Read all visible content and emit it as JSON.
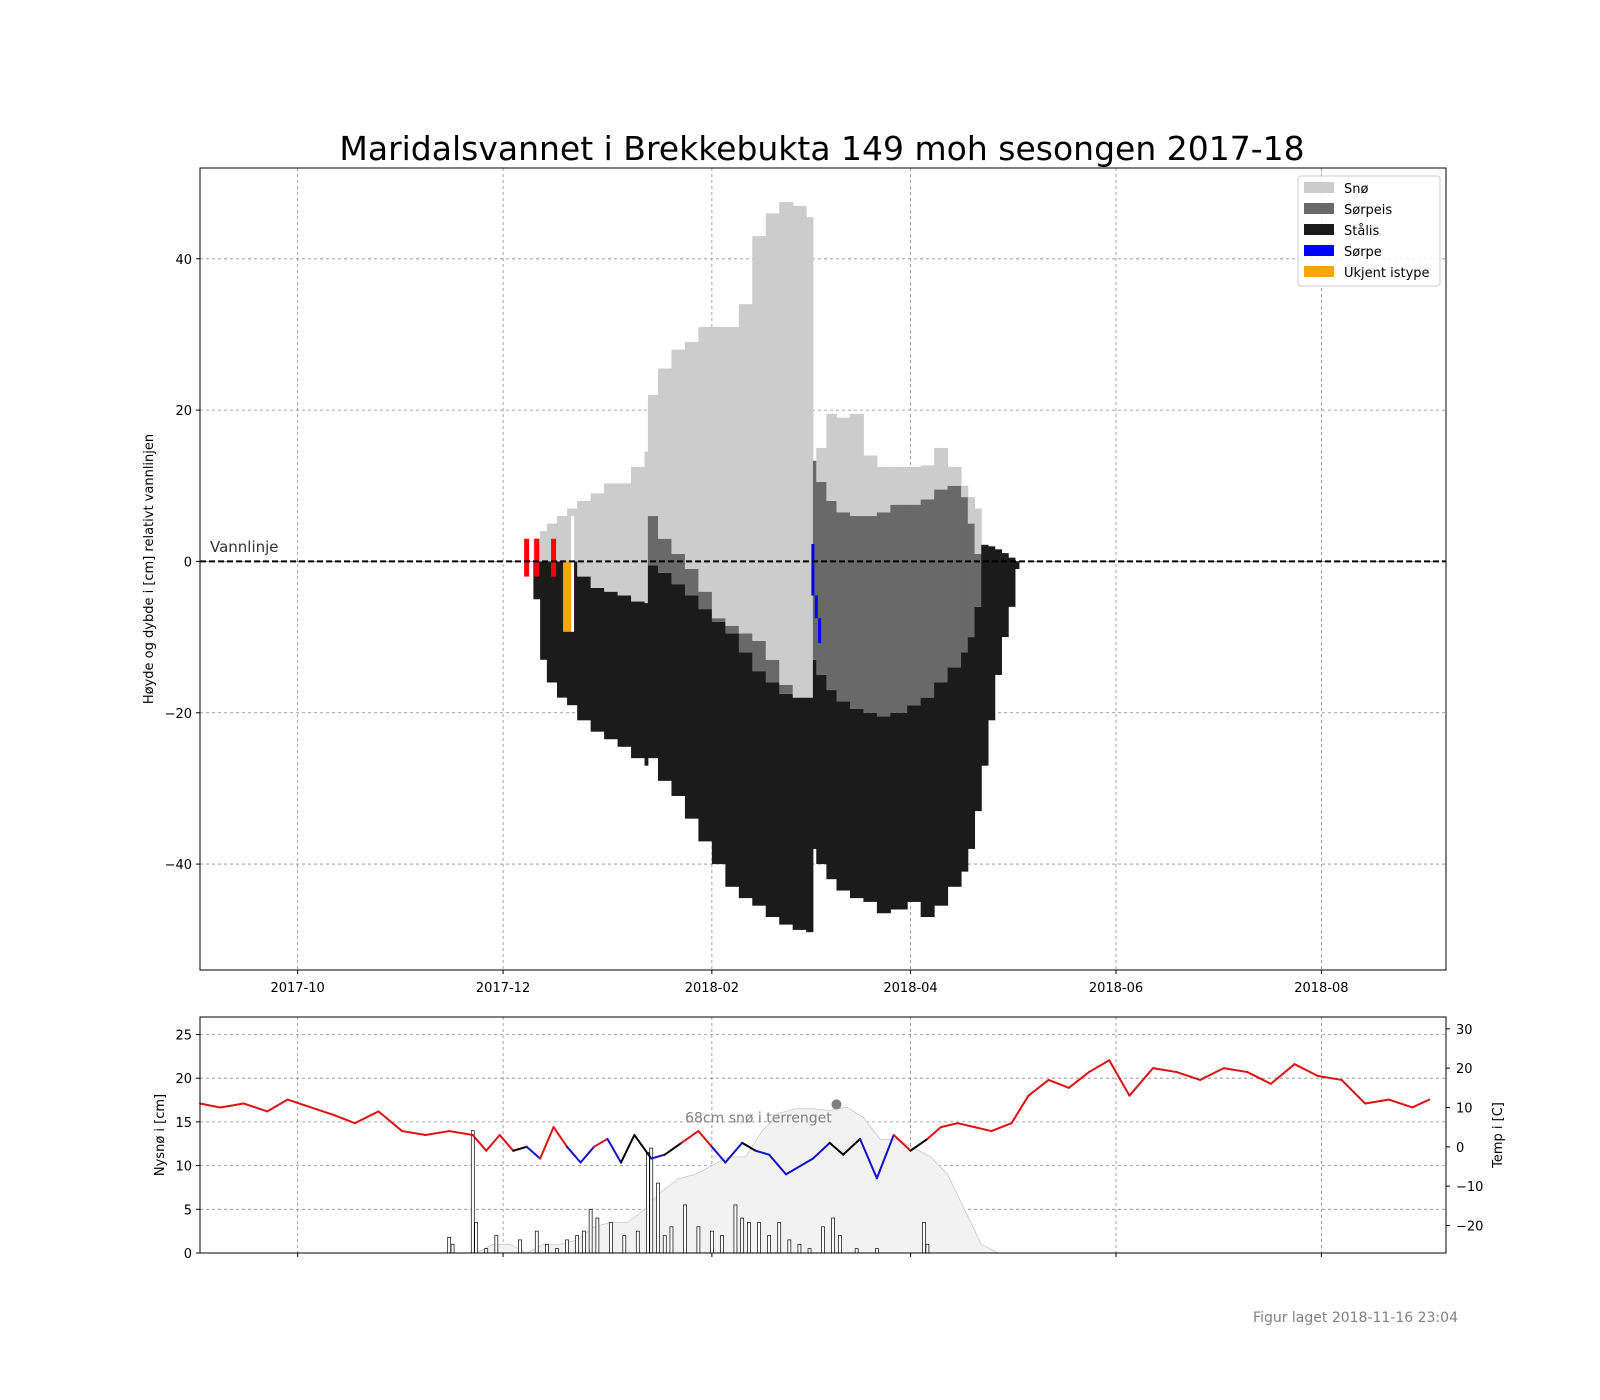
{
  "footer": {
    "created": "Figur laget 2018-11-16 23:04"
  },
  "colors": {
    "snow": "#cccccc",
    "slush_ice": "#696969",
    "black_ice": "#1b1b1b",
    "slush": "#0000ff",
    "unknown": "#ffa500",
    "observation_marker": "#ff0000",
    "temp_warm": "#dd1111",
    "temp_cold": "#1111cc",
    "temp_mid": "#000000",
    "terrain_snow": "#f2f2f2",
    "precip_bar": "#ffffff"
  },
  "chart_data": [
    {
      "type": "bar",
      "title": "Maridalsvannet i Brekkebukta 149 moh sesongen 2017-18",
      "xlabel": "",
      "ylabel": "Høyde og dybde i [cm] relativt vannlinjen",
      "x_ticks": [
        "2017-10",
        "2017-12",
        "2018-02",
        "2018-04",
        "2018-06",
        "2018-08"
      ],
      "xlim": [
        "2017-09-02",
        "2018-09-07"
      ],
      "ylim": [
        -54,
        52
      ],
      "y_ticks": [
        40,
        20,
        0,
        -20,
        -40
      ],
      "grid": true,
      "legend_position": "upper-right",
      "legend": [
        "Snø",
        "Sørpeis",
        "Stålis",
        "Sørpe",
        "Ukjent istype"
      ],
      "waterline": {
        "y": 0,
        "label": "Vannlinje"
      },
      "observation_markers": [
        {
          "date": "2017-12-08",
          "top": 3,
          "bottom": -2
        },
        {
          "date": "2017-12-11",
          "top": 3,
          "bottom": -2
        },
        {
          "date": "2017-12-16",
          "top": 3,
          "bottom": -2
        }
      ],
      "unknown_ice": [
        {
          "date": "2017-12-20",
          "top": 0,
          "bottom": -9.3
        }
      ],
      "slush": [
        {
          "date": "2018-03-03",
          "top": 2.3,
          "bottom": -4.5
        },
        {
          "date": "2018-03-04",
          "top": -4.5,
          "bottom": -7.5
        },
        {
          "date": "2018-03-05",
          "top": -7.5,
          "bottom": -10.8
        }
      ],
      "ice_profile": {
        "dates": [
          "2017-12-10",
          "2017-12-12",
          "2017-12-14",
          "2017-12-17",
          "2017-12-20",
          "2017-12-23",
          "2017-12-27",
          "2017-12-31",
          "2018-01-04",
          "2018-01-08",
          "2018-01-12",
          "2018-01-13",
          "2018-01-16",
          "2018-01-20",
          "2018-01-24",
          "2018-01-28",
          "2018-02-01",
          "2018-02-05",
          "2018-02-09",
          "2018-02-13",
          "2018-02-17",
          "2018-02-21",
          "2018-02-25",
          "2018-03-01",
          "2018-03-03",
          "2018-03-04",
          "2018-03-07",
          "2018-03-10",
          "2018-03-14",
          "2018-03-18",
          "2018-03-22",
          "2018-03-26",
          "2018-03-31",
          "2018-04-04",
          "2018-04-08",
          "2018-04-12",
          "2018-04-16",
          "2018-04-18",
          "2018-04-20",
          "2018-04-22",
          "2018-04-24",
          "2018-04-26",
          "2018-04-28",
          "2018-04-30",
          "2018-05-02"
        ],
        "black_ice_bottom": [
          -5,
          -13,
          -16,
          -18,
          -19,
          -21,
          -22.5,
          -23.5,
          -24.5,
          -26,
          -27,
          -26,
          -29,
          -31,
          -34,
          -37,
          -40,
          -43,
          -44.5,
          -45.5,
          -47,
          -48,
          -48.7,
          -49,
          -38,
          -40,
          -42,
          -43.5,
          -44.5,
          -45,
          -46.5,
          -46,
          -45,
          -47,
          -45.5,
          -43,
          -41,
          -38,
          -33,
          -27,
          -21,
          -15,
          -10,
          -6,
          -1
        ],
        "black_ice_top": [
          0,
          0,
          0,
          0,
          0,
          -2,
          -3.5,
          -4,
          -4.5,
          -5.3,
          -5.5,
          -0.5,
          -1.5,
          -3,
          -4.5,
          -6.3,
          -8,
          -9.5,
          -12,
          -14.5,
          -16,
          -17.5,
          -18,
          -18,
          -13,
          -15,
          -17,
          -18.5,
          -19.5,
          -20,
          -20.5,
          -20,
          -19,
          -18,
          -16,
          -14,
          -12,
          -10,
          -6,
          2.2,
          2,
          1.6,
          1.1,
          0.5,
          0
        ],
        "slush_ice_top": [
          0,
          0,
          0,
          0,
          0,
          -2,
          -3.5,
          -4,
          -4.5,
          -5.3,
          -5.5,
          6,
          3,
          1,
          -1,
          -4,
          -7.5,
          -8.5,
          -9.5,
          -10.5,
          -13,
          -16.3,
          -18,
          -18,
          13.3,
          10.5,
          8,
          6.5,
          6,
          6,
          6.5,
          7.5,
          7.5,
          8.2,
          9.5,
          10,
          8.5,
          5,
          1,
          2.2,
          2,
          1.6,
          1.1,
          0.5,
          0
        ],
        "snow_top": [
          3,
          4,
          5,
          6,
          7,
          8,
          9,
          10.3,
          10.3,
          12.5,
          14.5,
          22,
          25.5,
          28,
          29,
          31,
          31,
          31,
          34,
          43,
          46,
          47.5,
          47,
          45.5,
          13.3,
          15,
          19.5,
          19,
          19.5,
          14,
          12.5,
          12.5,
          12.5,
          12.7,
          15,
          12.5,
          10,
          8.5,
          7,
          2.2,
          2,
          1.6,
          1.1,
          0.5,
          0
        ]
      }
    },
    {
      "type": "line",
      "ylabel": "Nysnø i [cm]",
      "y2label": "Temp i [C]",
      "ylim": [
        0,
        27
      ],
      "y_ticks": [
        0,
        5,
        10,
        15,
        20,
        25
      ],
      "y2lim": [
        -27,
        33
      ],
      "y2_ticks": [
        -20,
        -10,
        0,
        10,
        20,
        30
      ],
      "grid": true,
      "annotation": {
        "text": "68cm snø i terrenget",
        "date": "2018-03-10",
        "value": 17
      },
      "temperature": {
        "dates": [
          "2017-09-02",
          "2017-09-08",
          "2017-09-15",
          "2017-09-22",
          "2017-09-28",
          "2017-10-05",
          "2017-10-12",
          "2017-10-18",
          "2017-10-25",
          "2017-11-01",
          "2017-11-08",
          "2017-11-15",
          "2017-11-22",
          "2017-11-26",
          "2017-11-30",
          "2017-12-04",
          "2017-12-08",
          "2017-12-12",
          "2017-12-16",
          "2017-12-20",
          "2017-12-24",
          "2017-12-28",
          "2018-01-01",
          "2018-01-05",
          "2018-01-09",
          "2018-01-14",
          "2018-01-18",
          "2018-01-23",
          "2018-01-28",
          "2018-02-01",
          "2018-02-05",
          "2018-02-10",
          "2018-02-14",
          "2018-02-18",
          "2018-02-23",
          "2018-02-27",
          "2018-03-03",
          "2018-03-08",
          "2018-03-12",
          "2018-03-17",
          "2018-03-22",
          "2018-03-27",
          "2018-04-01",
          "2018-04-06",
          "2018-04-10",
          "2018-04-15",
          "2018-04-20",
          "2018-04-25",
          "2018-05-01",
          "2018-05-06",
          "2018-05-12",
          "2018-05-18",
          "2018-05-24",
          "2018-05-30",
          "2018-06-05",
          "2018-06-12",
          "2018-06-19",
          "2018-06-26",
          "2018-07-03",
          "2018-07-10",
          "2018-07-17",
          "2018-07-24",
          "2018-07-31",
          "2018-08-07",
          "2018-08-14",
          "2018-08-21",
          "2018-08-28",
          "2018-09-02"
        ],
        "values": [
          11,
          10,
          11,
          9,
          12,
          10,
          8,
          6,
          9,
          4,
          3,
          4,
          3,
          -1,
          3,
          -1,
          0,
          -3,
          5,
          0,
          -4,
          0,
          2,
          -4,
          3,
          -3,
          -2,
          1,
          4,
          0,
          -4,
          1,
          -1,
          -2,
          -7,
          -5,
          -3,
          1,
          -2,
          2,
          -8,
          3,
          -1,
          2,
          5,
          6,
          5,
          4,
          6,
          13,
          17,
          15,
          19,
          22,
          13,
          20,
          19,
          17,
          20,
          19,
          16,
          21,
          18,
          17,
          11,
          12,
          10,
          12
        ]
      },
      "new_snow": {
        "dates": [
          "2017-11-15",
          "2017-11-16",
          "2017-11-22",
          "2017-11-23",
          "2017-11-26",
          "2017-11-29",
          "2017-12-06",
          "2017-12-11",
          "2017-12-14",
          "2017-12-17",
          "2017-12-20",
          "2017-12-23",
          "2017-12-25",
          "2017-12-27",
          "2017-12-29",
          "2018-01-02",
          "2018-01-06",
          "2018-01-10",
          "2018-01-13",
          "2018-01-14",
          "2018-01-16",
          "2018-01-18",
          "2018-01-20",
          "2018-01-24",
          "2018-01-28",
          "2018-02-01",
          "2018-02-04",
          "2018-02-08",
          "2018-02-10",
          "2018-02-12",
          "2018-02-15",
          "2018-02-18",
          "2018-02-21",
          "2018-02-24",
          "2018-02-27",
          "2018-03-02",
          "2018-03-06",
          "2018-03-09",
          "2018-03-11",
          "2018-03-16",
          "2018-03-22",
          "2018-04-05",
          "2018-04-06"
        ],
        "values": [
          1.8,
          1,
          14,
          3.5,
          0.5,
          2,
          1.5,
          2.5,
          1,
          0.5,
          1.5,
          2,
          2.5,
          5,
          4,
          3.5,
          2,
          2.5,
          11.5,
          12,
          8,
          2,
          3,
          5.5,
          3,
          2.5,
          2,
          5.5,
          4,
          3.5,
          3.5,
          2,
          3.5,
          1.5,
          1,
          0.5,
          3,
          4,
          2,
          0.5,
          0.5,
          3.5,
          1
        ]
      },
      "terrain_snow": {
        "dates": [
          "2017-11-23",
          "2017-11-28",
          "2017-12-03",
          "2017-12-08",
          "2017-12-13",
          "2017-12-18",
          "2017-12-23",
          "2017-12-28",
          "2018-01-02",
          "2018-01-07",
          "2018-01-12",
          "2018-01-17",
          "2018-01-22",
          "2018-01-27",
          "2018-02-01",
          "2018-02-06",
          "2018-02-11",
          "2018-02-16",
          "2018-02-21",
          "2018-02-26",
          "2018-03-03",
          "2018-03-08",
          "2018-03-13",
          "2018-03-18",
          "2018-03-23",
          "2018-03-28",
          "2018-04-02",
          "2018-04-07",
          "2018-04-12",
          "2018-04-17",
          "2018-04-22",
          "2018-04-27"
        ],
        "values": [
          0,
          1,
          1,
          0,
          1,
          1,
          1.5,
          3,
          3.5,
          3.5,
          5,
          7,
          8.5,
          9,
          10,
          11,
          11,
          14,
          16,
          16.5,
          16.5,
          16.3,
          16.7,
          15.5,
          13,
          13,
          12,
          11,
          9,
          5,
          1,
          0
        ]
      }
    }
  ]
}
